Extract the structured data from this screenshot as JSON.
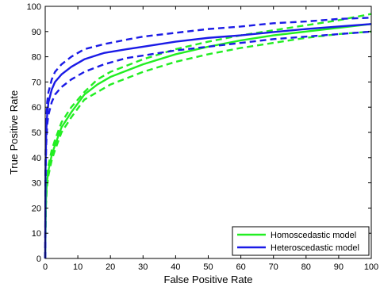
{
  "chart_data": {
    "type": "line",
    "title": "",
    "xlabel": "False Positive Rate",
    "ylabel": "True Positive Rate",
    "xlim": [
      0,
      100
    ],
    "ylim": [
      0,
      100
    ],
    "xticks": [
      "0",
      "10",
      "20",
      "30",
      "40",
      "50",
      "60",
      "70",
      "80",
      "90",
      "100"
    ],
    "yticks": [
      "0",
      "10",
      "20",
      "30",
      "40",
      "50",
      "60",
      "70",
      "80",
      "90",
      "100"
    ],
    "grid": false,
    "legend_position": "bottom-right",
    "series": [
      {
        "name": "Homoscedastic model",
        "color": "#22ee22",
        "style": "solid",
        "points": [
          [
            0,
            0
          ],
          [
            0.2,
            22
          ],
          [
            0.5,
            30
          ],
          [
            1,
            35
          ],
          [
            2,
            41
          ],
          [
            3,
            45
          ],
          [
            5,
            52
          ],
          [
            8,
            58
          ],
          [
            12,
            65
          ],
          [
            16,
            69
          ],
          [
            20,
            72
          ],
          [
            30,
            77
          ],
          [
            40,
            81
          ],
          [
            50,
            84
          ],
          [
            60,
            86.5
          ],
          [
            70,
            88.5
          ],
          [
            80,
            90
          ],
          [
            90,
            91.5
          ],
          [
            100,
            93
          ]
        ]
      },
      {
        "color": "#22ee22",
        "style": "dashed",
        "points": [
          [
            0,
            0
          ],
          [
            0.2,
            24
          ],
          [
            0.5,
            32
          ],
          [
            1,
            37
          ],
          [
            2,
            43
          ],
          [
            3,
            47
          ],
          [
            5,
            54
          ],
          [
            8,
            60
          ],
          [
            12,
            66
          ],
          [
            16,
            71
          ],
          [
            20,
            74
          ],
          [
            30,
            79
          ],
          [
            40,
            83
          ],
          [
            50,
            86
          ],
          [
            60,
            88.5
          ],
          [
            70,
            90.5
          ],
          [
            80,
            92.5
          ],
          [
            90,
            94.5
          ],
          [
            100,
            97
          ]
        ]
      },
      {
        "color": "#22ee22",
        "style": "dashed",
        "points": [
          [
            0,
            0
          ],
          [
            0.2,
            20
          ],
          [
            0.5,
            28
          ],
          [
            1,
            33
          ],
          [
            2,
            39
          ],
          [
            3,
            43
          ],
          [
            5,
            50
          ],
          [
            8,
            56
          ],
          [
            12,
            63
          ],
          [
            16,
            66
          ],
          [
            20,
            69
          ],
          [
            30,
            74
          ],
          [
            40,
            78
          ],
          [
            50,
            81
          ],
          [
            60,
            83.5
          ],
          [
            70,
            85.5
          ],
          [
            80,
            87.5
          ],
          [
            90,
            89
          ],
          [
            100,
            90
          ]
        ]
      },
      {
        "name": "Heteroscedastic model",
        "color": "#1a1ae6",
        "style": "solid",
        "points": [
          [
            0,
            0
          ],
          [
            0.1,
            35
          ],
          [
            0.3,
            50
          ],
          [
            0.6,
            57
          ],
          [
            1,
            62
          ],
          [
            2,
            67
          ],
          [
            3,
            70
          ],
          [
            5,
            73
          ],
          [
            8,
            76
          ],
          [
            12,
            79
          ],
          [
            18,
            81.5
          ],
          [
            25,
            83
          ],
          [
            30,
            84
          ],
          [
            40,
            86
          ],
          [
            50,
            87.5
          ],
          [
            60,
            88.5
          ],
          [
            70,
            89.8
          ],
          [
            80,
            91
          ],
          [
            90,
            92
          ],
          [
            100,
            93
          ]
        ]
      },
      {
        "color": "#1a1ae6",
        "style": "dashed",
        "points": [
          [
            0,
            0
          ],
          [
            0.1,
            40
          ],
          [
            0.3,
            55
          ],
          [
            0.6,
            62
          ],
          [
            1,
            66
          ],
          [
            2,
            71
          ],
          [
            3,
            74
          ],
          [
            5,
            77
          ],
          [
            8,
            80
          ],
          [
            12,
            83
          ],
          [
            18,
            85
          ],
          [
            25,
            86.8
          ],
          [
            30,
            88
          ],
          [
            40,
            89.5
          ],
          [
            50,
            91
          ],
          [
            60,
            92
          ],
          [
            70,
            93.3
          ],
          [
            80,
            94
          ],
          [
            90,
            95
          ],
          [
            100,
            95.5
          ]
        ]
      },
      {
        "color": "#1a1ae6",
        "style": "dashed",
        "points": [
          [
            0,
            0
          ],
          [
            0.1,
            30
          ],
          [
            0.3,
            45
          ],
          [
            0.6,
            53
          ],
          [
            1,
            57
          ],
          [
            2,
            62
          ],
          [
            3,
            65
          ],
          [
            5,
            68
          ],
          [
            8,
            71
          ],
          [
            12,
            74
          ],
          [
            18,
            77
          ],
          [
            25,
            79.5
          ],
          [
            30,
            80.5
          ],
          [
            40,
            82.5
          ],
          [
            50,
            84
          ],
          [
            60,
            85.5
          ],
          [
            70,
            87
          ],
          [
            80,
            88
          ],
          [
            90,
            89
          ],
          [
            100,
            90
          ]
        ]
      }
    ]
  }
}
